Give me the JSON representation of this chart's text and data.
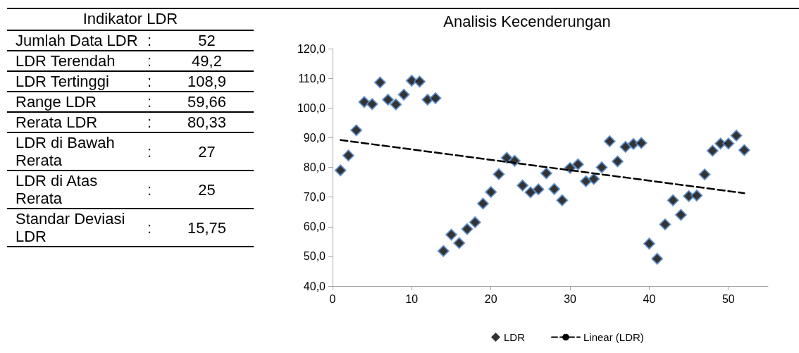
{
  "chart_data": [
    {
      "type": "other",
      "title": "Indikator LDR",
      "categories": [
        "Jumlah Data LDR",
        "LDR Terendah",
        "LDR Tertinggi",
        "Range LDR",
        "Rerata LDR",
        "LDR di Bawah Rerata",
        "LDR di Atas Rerata",
        "Standar Deviasi LDR"
      ],
      "annotations": [
        ":"
      ],
      "value_labels": [
        "52",
        "49,2",
        "108,9",
        "59,66",
        "80,33",
        "27",
        "25",
        "15,75"
      ]
    },
    {
      "type": "scatter",
      "title": "Analisis Kecenderungan",
      "x": [
        1,
        2,
        3,
        4,
        5,
        6,
        7,
        8,
        9,
        10,
        11,
        12,
        13,
        14,
        15,
        16,
        17,
        18,
        19,
        20,
        21,
        22,
        23,
        24,
        25,
        26,
        27,
        28,
        29,
        30,
        31,
        32,
        33,
        34,
        35,
        36,
        37,
        38,
        39,
        40,
        41,
        42,
        43,
        44,
        45,
        46,
        47,
        48,
        49,
        50,
        51,
        52
      ],
      "series": [
        {
          "name": "LDR",
          "type": "scatter",
          "color": "#000000",
          "marker": "diamond",
          "values": [
            79,
            84,
            92.5,
            102,
            101.3,
            108.6,
            102.8,
            101.2,
            104.5,
            109.2,
            108.9,
            102.8,
            103.3,
            51.8,
            57.3,
            54.5,
            59.2,
            61.5,
            67.8,
            71.7,
            77.7,
            83.2,
            82.2,
            73.9,
            71.6,
            72.6,
            78,
            72.7,
            68.9,
            79.8,
            81,
            75.3,
            76.1,
            80,
            88.8,
            82,
            86.9,
            87.9,
            88.2,
            54.3,
            49.2,
            60.8,
            68.9,
            64,
            70.3,
            70.5,
            77.6,
            85.6,
            88,
            88,
            90.7,
            85.8
          ]
        },
        {
          "name": "Linear (LDR)",
          "type": "line",
          "color": "#000000",
          "line_style": "dashed",
          "marker": "none",
          "x": [
            1,
            52
          ],
          "values": [
            89.2,
            71.3
          ]
        }
      ],
      "xlim": [
        0,
        55
      ],
      "xticks": [
        0,
        10,
        20,
        30,
        40,
        50
      ],
      "ylim": [
        40,
        120
      ],
      "yticks": [
        {
          "value": 40,
          "label": "40,0"
        },
        {
          "value": 50,
          "label": "50,0"
        },
        {
          "value": 60,
          "label": "60,0"
        },
        {
          "value": 70,
          "label": "70,0"
        },
        {
          "value": 80,
          "label": "80,0"
        },
        {
          "value": 90,
          "label": "90,0"
        },
        {
          "value": 100,
          "label": "100,0"
        },
        {
          "value": 110,
          "label": "110,0"
        },
        {
          "value": 120,
          "label": "120,0"
        }
      ],
      "grid": false,
      "legend": "bottom"
    }
  ]
}
